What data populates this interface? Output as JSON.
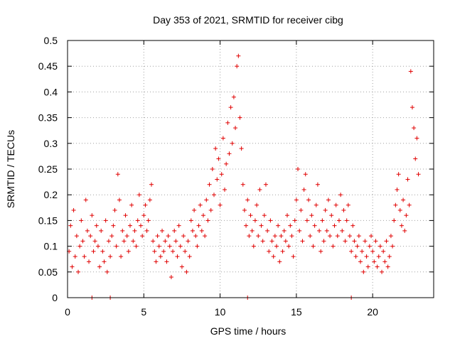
{
  "chart_data": {
    "type": "scatter",
    "title": "Day 353 of 2021, SRMTID for receiver cibg",
    "xlabel": "GPS time / hours",
    "ylabel": "SRMTID / TECUs",
    "xlim": [
      0,
      24
    ],
    "ylim": [
      0,
      0.5
    ],
    "xticks": [
      0,
      5,
      10,
      15,
      20
    ],
    "xtick_labels": [
      "0",
      "5",
      "10",
      "15",
      "20"
    ],
    "yticks": [
      0,
      0.05,
      0.1,
      0.15,
      0.2,
      0.25,
      0.3,
      0.35,
      0.4,
      0.45,
      0.5
    ],
    "ytick_labels": [
      "0",
      "0.05",
      "0.1",
      "0.15",
      "0.2",
      "0.25",
      "0.3",
      "0.35",
      "0.4",
      "0.45",
      "0.5"
    ],
    "grid": true,
    "marker": "+",
    "color": "#e00000",
    "series": [
      {
        "name": "SRMTID",
        "points": [
          [
            0.1,
            0.09
          ],
          [
            0.2,
            0.14
          ],
          [
            0.3,
            0.06
          ],
          [
            0.4,
            0.17
          ],
          [
            0.5,
            0.08
          ],
          [
            0.6,
            0.12
          ],
          [
            0.7,
            0.05
          ],
          [
            0.8,
            0.1
          ],
          [
            0.9,
            0.15
          ],
          [
            1.0,
            0.11
          ],
          [
            1.1,
            0.08
          ],
          [
            1.2,
            0.19
          ],
          [
            1.3,
            0.13
          ],
          [
            1.4,
            0.07
          ],
          [
            1.5,
            0.12
          ],
          [
            1.6,
            0.16
          ],
          [
            1.7,
            0.09
          ],
          [
            1.8,
            0.11
          ],
          [
            1.9,
            0.14
          ],
          [
            2.0,
            0.1
          ],
          [
            2.1,
            0.06
          ],
          [
            2.2,
            0.13
          ],
          [
            2.3,
            0.09
          ],
          [
            2.4,
            0.07
          ],
          [
            2.5,
            0.15
          ],
          [
            2.6,
            0.05
          ],
          [
            2.7,
            0.11
          ],
          [
            2.8,
            0.08
          ],
          [
            2.9,
            0.12
          ],
          [
            3.0,
            0.14
          ],
          [
            3.1,
            0.17
          ],
          [
            3.2,
            0.1
          ],
          [
            3.3,
            0.24
          ],
          [
            3.4,
            0.19
          ],
          [
            3.5,
            0.08
          ],
          [
            3.6,
            0.13
          ],
          [
            3.7,
            0.11
          ],
          [
            3.8,
            0.16
          ],
          [
            3.9,
            0.12
          ],
          [
            4.0,
            0.09
          ],
          [
            4.1,
            0.14
          ],
          [
            4.2,
            0.18
          ],
          [
            4.3,
            0.11
          ],
          [
            4.4,
            0.13
          ],
          [
            4.5,
            0.1
          ],
          [
            4.6,
            0.15
          ],
          [
            4.7,
            0.2
          ],
          [
            4.8,
            0.14
          ],
          [
            4.9,
            0.12
          ],
          [
            5.0,
            0.16
          ],
          [
            5.1,
            0.18
          ],
          [
            5.2,
            0.13
          ],
          [
            5.3,
            0.15
          ],
          [
            5.4,
            0.19
          ],
          [
            5.5,
            0.22
          ],
          [
            5.6,
            0.11
          ],
          [
            5.7,
            0.09
          ],
          [
            5.8,
            0.07
          ],
          [
            5.9,
            0.12
          ],
          [
            6.0,
            0.1
          ],
          [
            6.1,
            0.08
          ],
          [
            6.2,
            0.13
          ],
          [
            6.3,
            0.09
          ],
          [
            6.4,
            0.11
          ],
          [
            6.5,
            0.07
          ],
          [
            6.6,
            0.12
          ],
          [
            6.7,
            0.1
          ],
          [
            6.8,
            0.04
          ],
          [
            6.9,
            0.09
          ],
          [
            7.0,
            0.13
          ],
          [
            7.1,
            0.11
          ],
          [
            7.2,
            0.08
          ],
          [
            7.3,
            0.14
          ],
          [
            7.4,
            0.1
          ],
          [
            7.5,
            0.06
          ],
          [
            7.6,
            0.12
          ],
          [
            7.7,
            0.09
          ],
          [
            7.8,
            0.05
          ],
          [
            7.9,
            0.11
          ],
          [
            8.0,
            0.08
          ],
          [
            8.1,
            0.15
          ],
          [
            8.2,
            0.13
          ],
          [
            8.3,
            0.17
          ],
          [
            8.4,
            0.12
          ],
          [
            8.5,
            0.1
          ],
          [
            8.6,
            0.14
          ],
          [
            8.7,
            0.18
          ],
          [
            8.8,
            0.13
          ],
          [
            8.9,
            0.16
          ],
          [
            9.0,
            0.12
          ],
          [
            9.1,
            0.19
          ],
          [
            9.2,
            0.15
          ],
          [
            9.3,
            0.22
          ],
          [
            9.4,
            0.17
          ],
          [
            9.5,
            0.25
          ],
          [
            9.6,
            0.2
          ],
          [
            9.7,
            0.29
          ],
          [
            9.8,
            0.23
          ],
          [
            9.9,
            0.27
          ],
          [
            10.0,
            0.18
          ],
          [
            10.1,
            0.24
          ],
          [
            10.2,
            0.31
          ],
          [
            10.3,
            0.21
          ],
          [
            10.4,
            0.26
          ],
          [
            10.5,
            0.34
          ],
          [
            10.6,
            0.28
          ],
          [
            10.7,
            0.37
          ],
          [
            10.8,
            0.3
          ],
          [
            10.9,
            0.39
          ],
          [
            11.0,
            0.33
          ],
          [
            11.1,
            0.45
          ],
          [
            11.2,
            0.47
          ],
          [
            11.3,
            0.35
          ],
          [
            11.4,
            0.29
          ],
          [
            11.5,
            0.22
          ],
          [
            11.6,
            0.17
          ],
          [
            11.7,
            0.14
          ],
          [
            11.8,
            0.19
          ],
          [
            11.9,
            0.12
          ],
          [
            12.0,
            0.16
          ],
          [
            12.1,
            0.13
          ],
          [
            12.2,
            0.1
          ],
          [
            12.3,
            0.15
          ],
          [
            12.4,
            0.18
          ],
          [
            12.5,
            0.12
          ],
          [
            12.6,
            0.21
          ],
          [
            12.7,
            0.14
          ],
          [
            12.8,
            0.11
          ],
          [
            12.9,
            0.16
          ],
          [
            13.0,
            0.22
          ],
          [
            13.1,
            0.13
          ],
          [
            13.2,
            0.09
          ],
          [
            13.3,
            0.15
          ],
          [
            13.4,
            0.11
          ],
          [
            13.5,
            0.08
          ],
          [
            13.6,
            0.12
          ],
          [
            13.7,
            0.1
          ],
          [
            13.8,
            0.14
          ],
          [
            13.9,
            0.07
          ],
          [
            14.0,
            0.12
          ],
          [
            14.1,
            0.09
          ],
          [
            14.2,
            0.13
          ],
          [
            14.3,
            0.11
          ],
          [
            14.4,
            0.16
          ],
          [
            14.5,
            0.1
          ],
          [
            14.6,
            0.14
          ],
          [
            14.7,
            0.12
          ],
          [
            14.8,
            0.08
          ],
          [
            14.9,
            0.15
          ],
          [
            15.0,
            0.19
          ],
          [
            15.1,
            0.25
          ],
          [
            15.2,
            0.13
          ],
          [
            15.3,
            0.17
          ],
          [
            15.4,
            0.11
          ],
          [
            15.5,
            0.21
          ],
          [
            15.6,
            0.24
          ],
          [
            15.7,
            0.15
          ],
          [
            15.8,
            0.19
          ],
          [
            15.9,
            0.12
          ],
          [
            16.0,
            0.16
          ],
          [
            16.1,
            0.1
          ],
          [
            16.2,
            0.14
          ],
          [
            16.3,
            0.18
          ],
          [
            16.4,
            0.22
          ],
          [
            16.5,
            0.13
          ],
          [
            16.6,
            0.09
          ],
          [
            16.7,
            0.15
          ],
          [
            16.8,
            0.11
          ],
          [
            16.9,
            0.17
          ],
          [
            17.0,
            0.13
          ],
          [
            17.1,
            0.19
          ],
          [
            17.2,
            0.12
          ],
          [
            17.3,
            0.16
          ],
          [
            17.4,
            0.1
          ],
          [
            17.5,
            0.14
          ],
          [
            17.6,
            0.18
          ],
          [
            17.7,
            0.12
          ],
          [
            17.8,
            0.15
          ],
          [
            17.9,
            0.2
          ],
          [
            18.0,
            0.13
          ],
          [
            18.1,
            0.17
          ],
          [
            18.2,
            0.11
          ],
          [
            18.3,
            0.15
          ],
          [
            18.4,
            0.18
          ],
          [
            18.5,
            0.12
          ],
          [
            18.6,
            0.09
          ],
          [
            18.7,
            0.14
          ],
          [
            18.8,
            0.11
          ],
          [
            18.9,
            0.08
          ],
          [
            19.0,
            0.1
          ],
          [
            19.1,
            0.12
          ],
          [
            19.2,
            0.07
          ],
          [
            19.3,
            0.09
          ],
          [
            19.4,
            0.05
          ],
          [
            19.5,
            0.11
          ],
          [
            19.6,
            0.08
          ],
          [
            19.7,
            0.06
          ],
          [
            19.8,
            0.1
          ],
          [
            19.9,
            0.12
          ],
          [
            20.0,
            0.09
          ],
          [
            20.1,
            0.07
          ],
          [
            20.2,
            0.11
          ],
          [
            20.3,
            0.06
          ],
          [
            20.4,
            0.08
          ],
          [
            20.5,
            0.1
          ],
          [
            20.6,
            0.05
          ],
          [
            20.7,
            0.09
          ],
          [
            20.8,
            0.07
          ],
          [
            20.9,
            0.11
          ],
          [
            21.0,
            0.06
          ],
          [
            21.1,
            0.08
          ],
          [
            21.2,
            0.12
          ],
          [
            21.3,
            0.1
          ],
          [
            21.4,
            0.15
          ],
          [
            21.5,
            0.18
          ],
          [
            21.6,
            0.21
          ],
          [
            21.7,
            0.24
          ],
          [
            21.8,
            0.17
          ],
          [
            21.9,
            0.14
          ],
          [
            22.0,
            0.19
          ],
          [
            22.1,
            0.13
          ],
          [
            22.2,
            0.16
          ],
          [
            22.3,
            0.23
          ],
          [
            22.4,
            0.18
          ],
          [
            22.5,
            0.44
          ],
          [
            22.6,
            0.37
          ],
          [
            22.7,
            0.33
          ],
          [
            22.8,
            0.27
          ],
          [
            22.9,
            0.31
          ],
          [
            23.0,
            0.24
          ]
        ]
      }
    ],
    "zero_markers": [
      1.6,
      2.8,
      11.8,
      18.6
    ]
  }
}
